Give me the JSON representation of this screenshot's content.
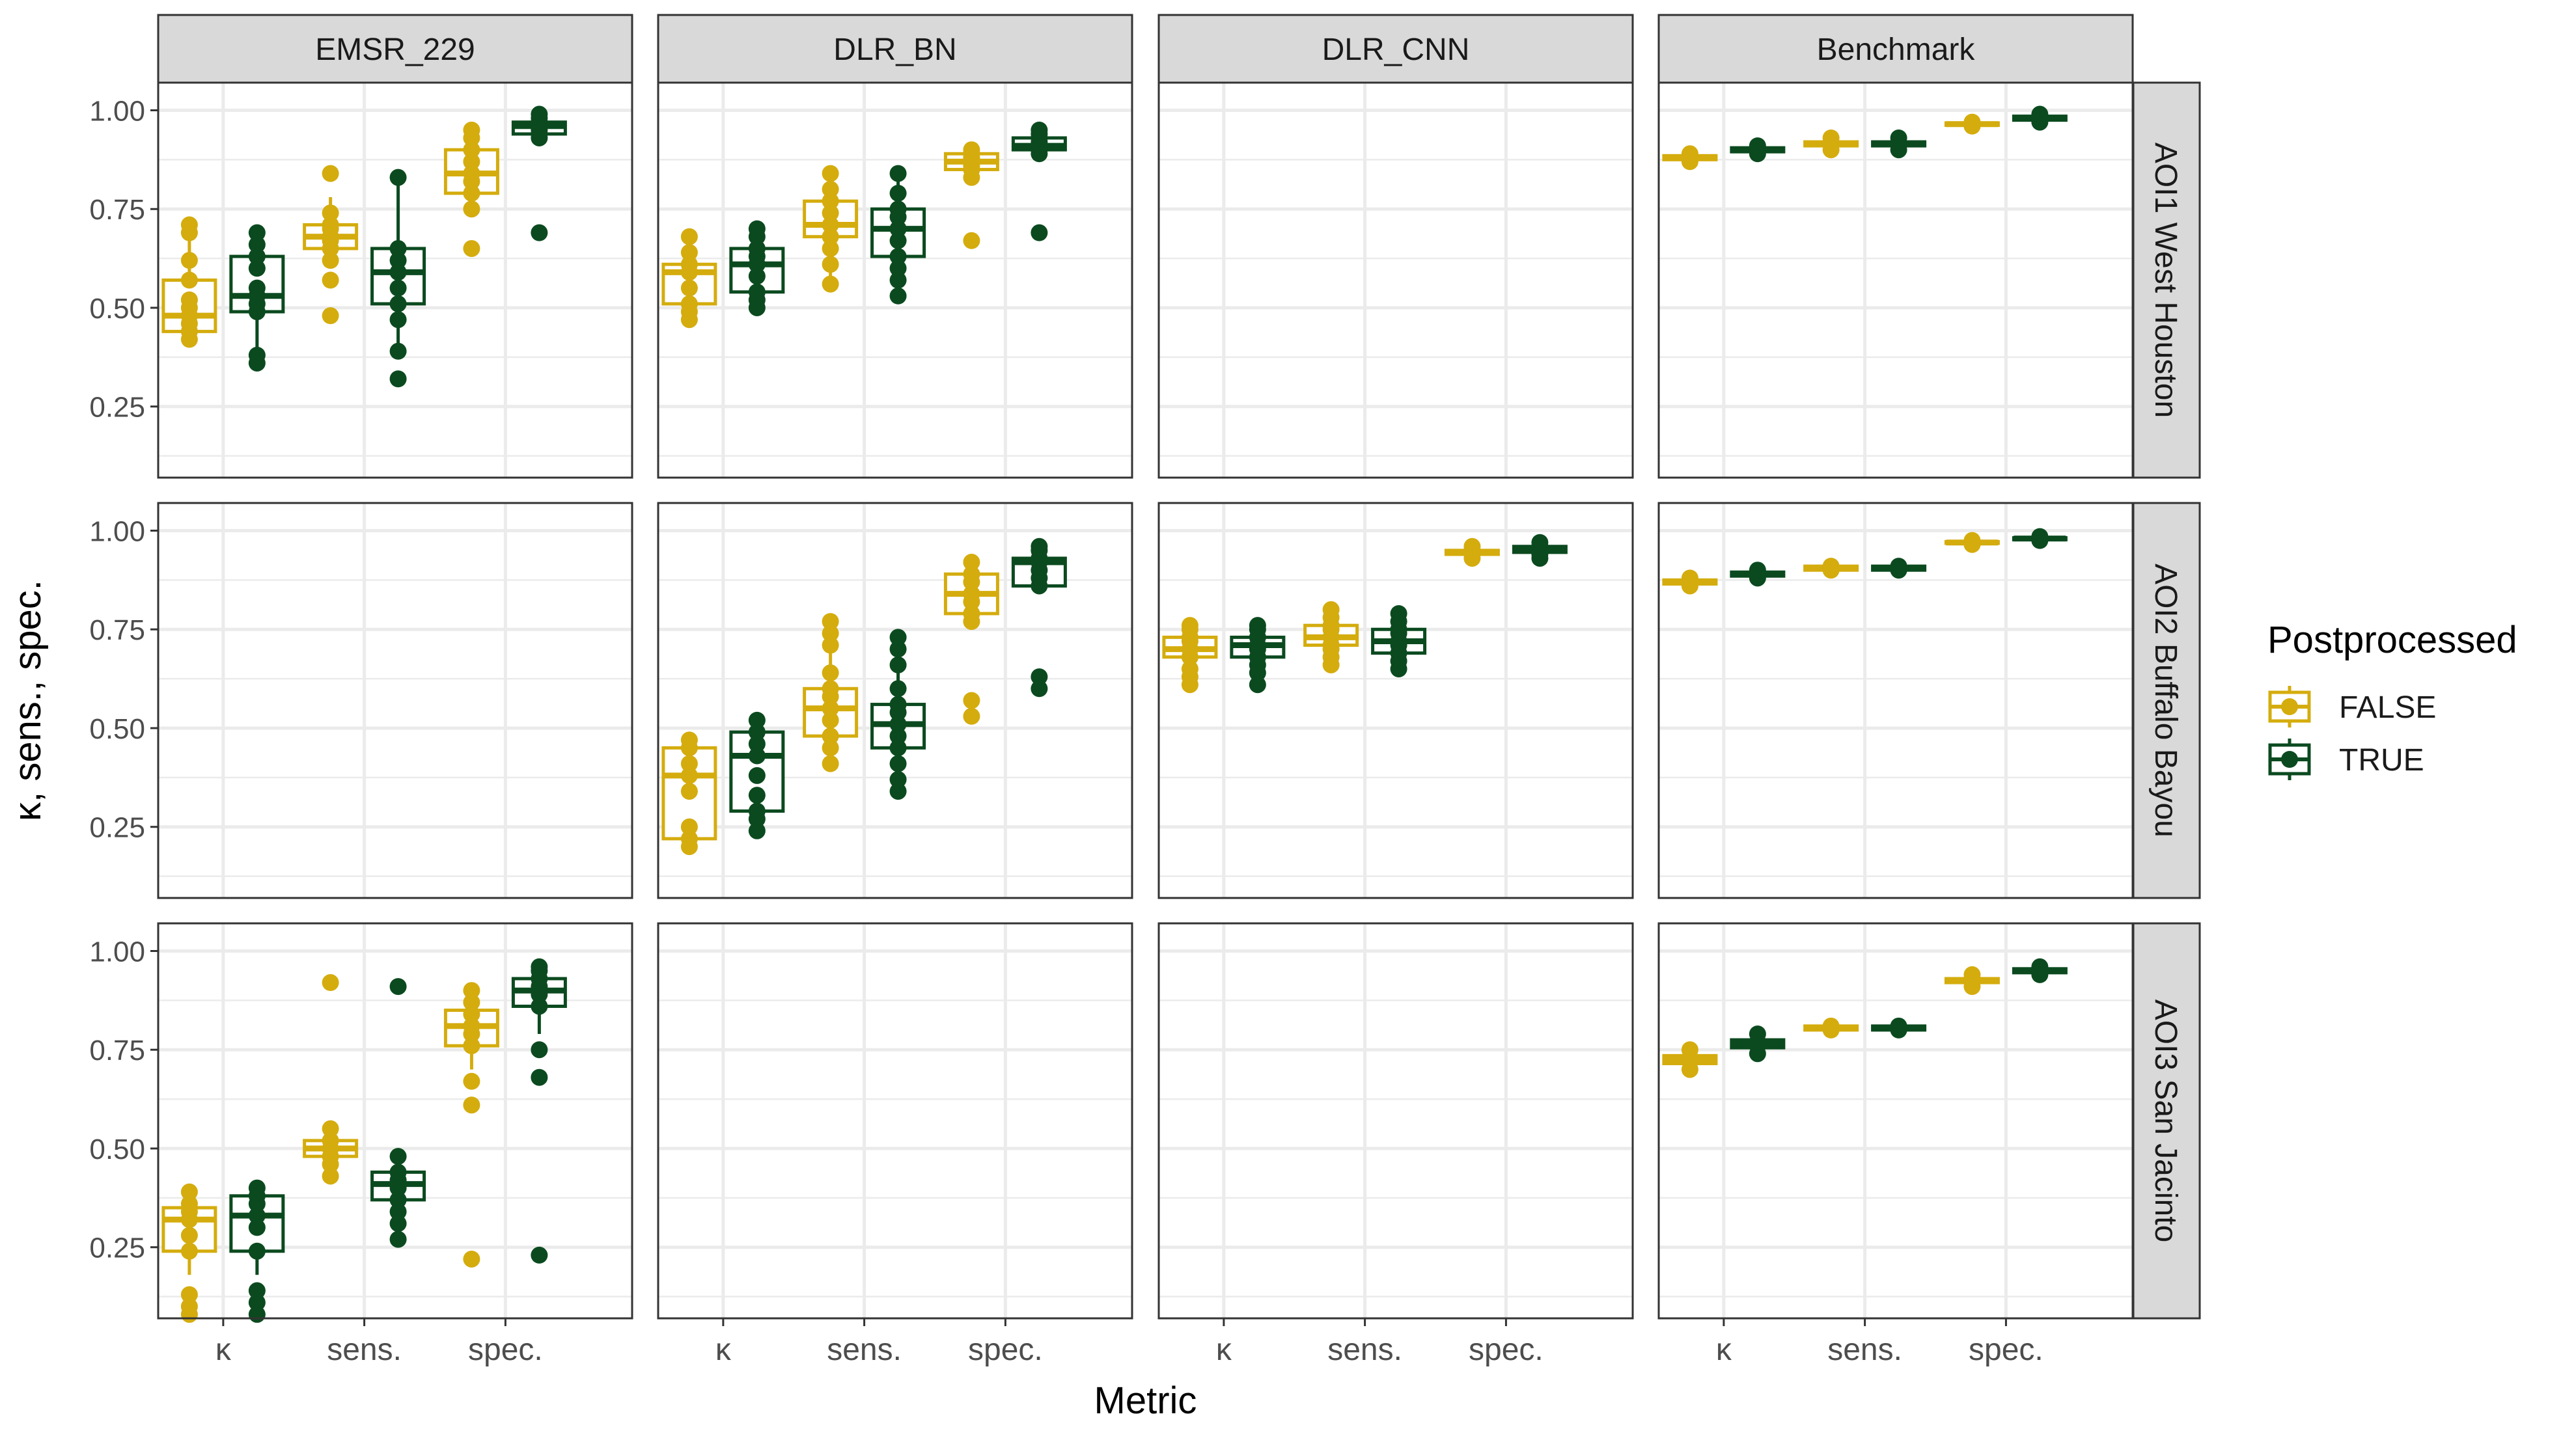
{
  "chart_data": {
    "type": "faceted-boxplot",
    "ylabel": "κ, sens., spec.",
    "xlabel": "Metric",
    "ylim": [
      0.07,
      1.07
    ],
    "yticks": [
      "0.25",
      "0.50",
      "0.75",
      "1.00"
    ],
    "categories": [
      "κ",
      "sens.",
      "spec."
    ],
    "columns": [
      "EMSR_229",
      "DLR_BN",
      "DLR_CNN",
      "Benchmark"
    ],
    "rows": [
      "AOI1 West Houston",
      "AOI2 Buffalo Bayou",
      "AOI3 San Jacinto"
    ],
    "legend": {
      "title": "Postprocessed",
      "position": "right",
      "entries": [
        {
          "label": "FALSE",
          "color": "#D4AC0D"
        },
        {
          "label": "TRUE",
          "color": "#0B4A1F"
        }
      ]
    },
    "panels": [
      {
        "row": 0,
        "col": 0,
        "boxes": [
          {
            "cat": 0,
            "group": 0,
            "stats": [
              0.42,
              0.44,
              0.48,
              0.57,
              0.71
            ],
            "points": [
              0.42,
              0.44,
              0.46,
              0.48,
              0.5,
              0.52,
              0.57,
              0.62,
              0.69,
              0.71
            ]
          },
          {
            "cat": 0,
            "group": 1,
            "stats": [
              0.36,
              0.49,
              0.53,
              0.63,
              0.69
            ],
            "points": [
              0.36,
              0.38,
              0.49,
              0.51,
              0.53,
              0.55,
              0.6,
              0.63,
              0.66,
              0.69
            ]
          },
          {
            "cat": 1,
            "group": 0,
            "stats": [
              0.62,
              0.65,
              0.68,
              0.71,
              0.78
            ],
            "points": [
              0.48,
              0.57,
              0.62,
              0.65,
              0.67,
              0.68,
              0.7,
              0.71,
              0.74,
              0.84
            ]
          },
          {
            "cat": 1,
            "group": 1,
            "stats": [
              0.4,
              0.51,
              0.59,
              0.65,
              0.83
            ],
            "points": [
              0.32,
              0.39,
              0.47,
              0.51,
              0.55,
              0.59,
              0.62,
              0.65,
              0.83
            ]
          },
          {
            "cat": 2,
            "group": 0,
            "stats": [
              0.73,
              0.79,
              0.84,
              0.9,
              0.95
            ],
            "points": [
              0.65,
              0.75,
              0.79,
              0.82,
              0.84,
              0.87,
              0.9,
              0.93,
              0.95
            ]
          },
          {
            "cat": 2,
            "group": 1,
            "stats": [
              0.93,
              0.94,
              0.96,
              0.97,
              0.99
            ],
            "points": [
              0.69,
              0.93,
              0.94,
              0.95,
              0.96,
              0.97,
              0.98,
              0.99
            ]
          }
        ]
      },
      {
        "row": 0,
        "col": 1,
        "boxes": [
          {
            "cat": 0,
            "group": 0,
            "stats": [
              0.47,
              0.51,
              0.59,
              0.61,
              0.68
            ],
            "points": [
              0.47,
              0.49,
              0.51,
              0.55,
              0.59,
              0.61,
              0.64,
              0.68
            ]
          },
          {
            "cat": 0,
            "group": 1,
            "stats": [
              0.5,
              0.54,
              0.61,
              0.65,
              0.7
            ],
            "points": [
              0.5,
              0.52,
              0.54,
              0.58,
              0.61,
              0.63,
              0.65,
              0.68,
              0.7
            ]
          },
          {
            "cat": 1,
            "group": 0,
            "stats": [
              0.56,
              0.68,
              0.71,
              0.77,
              0.84
            ],
            "points": [
              0.56,
              0.61,
              0.65,
              0.68,
              0.71,
              0.74,
              0.77,
              0.8,
              0.84
            ]
          },
          {
            "cat": 1,
            "group": 1,
            "stats": [
              0.53,
              0.63,
              0.7,
              0.75,
              0.84
            ],
            "points": [
              0.53,
              0.57,
              0.6,
              0.63,
              0.67,
              0.7,
              0.73,
              0.75,
              0.79,
              0.84
            ]
          },
          {
            "cat": 2,
            "group": 0,
            "stats": [
              0.83,
              0.85,
              0.87,
              0.89,
              0.9
            ],
            "points": [
              0.67,
              0.83,
              0.85,
              0.86,
              0.87,
              0.88,
              0.89,
              0.9
            ]
          },
          {
            "cat": 2,
            "group": 1,
            "stats": [
              0.89,
              0.9,
              0.91,
              0.93,
              0.95
            ],
            "points": [
              0.69,
              0.89,
              0.9,
              0.91,
              0.92,
              0.93,
              0.94,
              0.95
            ]
          }
        ]
      },
      {
        "row": 0,
        "col": 2,
        "boxes": []
      },
      {
        "row": 0,
        "col": 3,
        "boxes": [
          {
            "cat": 0,
            "group": 0,
            "stats": [
              0.87,
              0.875,
              0.88,
              0.885,
              0.89
            ],
            "points": [
              0.87,
              0.88,
              0.89
            ]
          },
          {
            "cat": 0,
            "group": 1,
            "stats": [
              0.89,
              0.895,
              0.9,
              0.905,
              0.91
            ],
            "points": [
              0.89,
              0.9,
              0.91
            ]
          },
          {
            "cat": 1,
            "group": 0,
            "stats": [
              0.9,
              0.91,
              0.915,
              0.92,
              0.93
            ],
            "points": [
              0.9,
              0.915,
              0.93
            ]
          },
          {
            "cat": 1,
            "group": 1,
            "stats": [
              0.9,
              0.91,
              0.915,
              0.92,
              0.93
            ],
            "points": [
              0.9,
              0.915,
              0.93
            ]
          },
          {
            "cat": 2,
            "group": 0,
            "stats": [
              0.96,
              0.962,
              0.965,
              0.968,
              0.97
            ],
            "points": [
              0.96,
              0.965,
              0.97
            ]
          },
          {
            "cat": 2,
            "group": 1,
            "stats": [
              0.97,
              0.975,
              0.98,
              0.985,
              0.99
            ],
            "points": [
              0.97,
              0.98,
              0.99
            ]
          }
        ]
      },
      {
        "row": 1,
        "col": 0,
        "boxes": []
      },
      {
        "row": 1,
        "col": 1,
        "boxes": [
          {
            "cat": 0,
            "group": 0,
            "stats": [
              0.2,
              0.22,
              0.38,
              0.45,
              0.47
            ],
            "points": [
              0.2,
              0.22,
              0.25,
              0.34,
              0.38,
              0.41,
              0.45,
              0.47
            ]
          },
          {
            "cat": 0,
            "group": 1,
            "stats": [
              0.24,
              0.29,
              0.43,
              0.49,
              0.52
            ],
            "points": [
              0.24,
              0.27,
              0.29,
              0.33,
              0.38,
              0.43,
              0.46,
              0.49,
              0.52
            ]
          },
          {
            "cat": 1,
            "group": 0,
            "stats": [
              0.41,
              0.48,
              0.55,
              0.6,
              0.77
            ],
            "points": [
              0.41,
              0.45,
              0.48,
              0.52,
              0.55,
              0.58,
              0.6,
              0.64,
              0.71,
              0.74,
              0.77
            ]
          },
          {
            "cat": 1,
            "group": 1,
            "stats": [
              0.34,
              0.45,
              0.51,
              0.56,
              0.73
            ],
            "points": [
              0.34,
              0.37,
              0.41,
              0.45,
              0.48,
              0.51,
              0.54,
              0.56,
              0.6,
              0.66,
              0.7,
              0.73
            ]
          },
          {
            "cat": 2,
            "group": 0,
            "stats": [
              0.77,
              0.79,
              0.84,
              0.89,
              0.92
            ],
            "points": [
              0.53,
              0.57,
              0.77,
              0.79,
              0.82,
              0.84,
              0.87,
              0.89,
              0.92
            ]
          },
          {
            "cat": 2,
            "group": 1,
            "stats": [
              0.86,
              0.86,
              0.92,
              0.93,
              0.96
            ],
            "points": [
              0.6,
              0.63,
              0.86,
              0.88,
              0.9,
              0.92,
              0.93,
              0.95,
              0.96
            ]
          }
        ]
      },
      {
        "row": 1,
        "col": 2,
        "boxes": [
          {
            "cat": 0,
            "group": 0,
            "stats": [
              0.61,
              0.68,
              0.7,
              0.73,
              0.76
            ],
            "points": [
              0.61,
              0.63,
              0.65,
              0.68,
              0.7,
              0.72,
              0.73,
              0.75,
              0.76
            ]
          },
          {
            "cat": 0,
            "group": 1,
            "stats": [
              0.61,
              0.68,
              0.71,
              0.73,
              0.76
            ],
            "points": [
              0.61,
              0.64,
              0.66,
              0.68,
              0.7,
              0.71,
              0.73,
              0.75,
              0.76
            ]
          },
          {
            "cat": 1,
            "group": 0,
            "stats": [
              0.66,
              0.71,
              0.73,
              0.76,
              0.8
            ],
            "points": [
              0.66,
              0.68,
              0.7,
              0.71,
              0.73,
              0.75,
              0.76,
              0.78,
              0.8
            ]
          },
          {
            "cat": 1,
            "group": 1,
            "stats": [
              0.65,
              0.69,
              0.72,
              0.75,
              0.79
            ],
            "points": [
              0.65,
              0.67,
              0.69,
              0.71,
              0.72,
              0.74,
              0.75,
              0.77,
              0.79
            ]
          },
          {
            "cat": 2,
            "group": 0,
            "stats": [
              0.93,
              0.94,
              0.945,
              0.95,
              0.96
            ],
            "points": [
              0.93,
              0.94,
              0.945,
              0.95,
              0.96
            ]
          },
          {
            "cat": 2,
            "group": 1,
            "stats": [
              0.93,
              0.945,
              0.95,
              0.96,
              0.97
            ],
            "points": [
              0.93,
              0.94,
              0.95,
              0.96,
              0.97
            ]
          }
        ]
      },
      {
        "row": 1,
        "col": 3,
        "boxes": [
          {
            "cat": 0,
            "group": 0,
            "stats": [
              0.86,
              0.865,
              0.87,
              0.875,
              0.88
            ],
            "points": [
              0.86,
              0.87,
              0.88
            ]
          },
          {
            "cat": 0,
            "group": 1,
            "stats": [
              0.88,
              0.885,
              0.89,
              0.895,
              0.9
            ],
            "points": [
              0.88,
              0.89,
              0.9
            ]
          },
          {
            "cat": 1,
            "group": 0,
            "stats": [
              0.9,
              0.9,
              0.905,
              0.91,
              0.91
            ],
            "points": [
              0.9,
              0.905,
              0.91
            ]
          },
          {
            "cat": 1,
            "group": 1,
            "stats": [
              0.9,
              0.9,
              0.905,
              0.91,
              0.91
            ],
            "points": [
              0.9,
              0.905,
              0.91
            ]
          },
          {
            "cat": 2,
            "group": 0,
            "stats": [
              0.965,
              0.968,
              0.97,
              0.972,
              0.975
            ],
            "points": [
              0.965,
              0.97,
              0.975
            ]
          },
          {
            "cat": 2,
            "group": 1,
            "stats": [
              0.975,
              0.977,
              0.98,
              0.982,
              0.985
            ],
            "points": [
              0.975,
              0.98,
              0.985
            ]
          }
        ]
      },
      {
        "row": 2,
        "col": 0,
        "boxes": [
          {
            "cat": 0,
            "group": 0,
            "stats": [
              0.18,
              0.24,
              0.32,
              0.35,
              0.39
            ],
            "points": [
              0.08,
              0.1,
              0.13,
              0.24,
              0.28,
              0.32,
              0.34,
              0.36,
              0.39
            ]
          },
          {
            "cat": 0,
            "group": 1,
            "stats": [
              0.18,
              0.24,
              0.33,
              0.38,
              0.4
            ],
            "points": [
              0.08,
              0.11,
              0.14,
              0.24,
              0.3,
              0.33,
              0.36,
              0.38,
              0.4
            ]
          },
          {
            "cat": 1,
            "group": 0,
            "stats": [
              0.43,
              0.48,
              0.5,
              0.52,
              0.55
            ],
            "points": [
              0.43,
              0.46,
              0.48,
              0.5,
              0.52,
              0.55,
              0.92
            ]
          },
          {
            "cat": 1,
            "group": 1,
            "stats": [
              0.32,
              0.37,
              0.41,
              0.44,
              0.48
            ],
            "points": [
              0.27,
              0.31,
              0.34,
              0.37,
              0.4,
              0.42,
              0.44,
              0.48,
              0.91
            ]
          },
          {
            "cat": 2,
            "group": 0,
            "stats": [
              0.7,
              0.76,
              0.81,
              0.85,
              0.9
            ],
            "points": [
              0.22,
              0.61,
              0.67,
              0.76,
              0.79,
              0.81,
              0.84,
              0.87,
              0.9
            ]
          },
          {
            "cat": 2,
            "group": 1,
            "stats": [
              0.79,
              0.86,
              0.9,
              0.93,
              0.96
            ],
            "points": [
              0.23,
              0.68,
              0.75,
              0.86,
              0.89,
              0.91,
              0.93,
              0.95,
              0.96
            ]
          }
        ]
      },
      {
        "row": 2,
        "col": 1,
        "boxes": []
      },
      {
        "row": 2,
        "col": 2,
        "boxes": []
      },
      {
        "row": 2,
        "col": 3,
        "boxes": [
          {
            "cat": 0,
            "group": 0,
            "stats": [
              0.7,
              0.715,
              0.725,
              0.735,
              0.75
            ],
            "points": [
              0.7,
              0.72,
              0.73,
              0.75
            ]
          },
          {
            "cat": 0,
            "group": 1,
            "stats": [
              0.74,
              0.755,
              0.765,
              0.775,
              0.79
            ],
            "points": [
              0.74,
              0.76,
              0.77,
              0.79
            ]
          },
          {
            "cat": 1,
            "group": 0,
            "stats": [
              0.8,
              0.8,
              0.805,
              0.81,
              0.81
            ],
            "points": [
              0.8,
              0.805,
              0.81
            ]
          },
          {
            "cat": 1,
            "group": 1,
            "stats": [
              0.8,
              0.8,
              0.805,
              0.81,
              0.81
            ],
            "points": [
              0.8,
              0.805,
              0.81
            ]
          },
          {
            "cat": 2,
            "group": 0,
            "stats": [
              0.91,
              0.92,
              0.925,
              0.93,
              0.94
            ],
            "points": [
              0.91,
              0.92,
              0.93,
              0.94
            ]
          },
          {
            "cat": 2,
            "group": 1,
            "stats": [
              0.94,
              0.945,
              0.95,
              0.955,
              0.96
            ],
            "points": [
              0.94,
              0.95,
              0.96
            ]
          }
        ]
      }
    ]
  }
}
